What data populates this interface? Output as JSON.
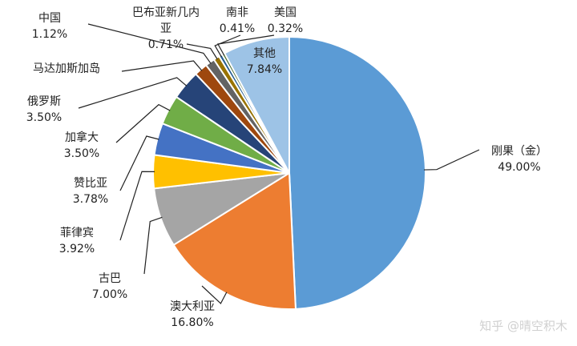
{
  "chart_data": {
    "type": "pie",
    "title": "",
    "slices": [
      {
        "name": "刚果（金）",
        "value": 49.0,
        "pct": "49.00%",
        "color": "#5b9bd5"
      },
      {
        "name": "澳大利亚",
        "value": 16.8,
        "pct": "16.80%",
        "color": "#ed7d31"
      },
      {
        "name": "古巴",
        "value": 7.0,
        "pct": "7.00%",
        "color": "#a5a5a5"
      },
      {
        "name": "菲律宾",
        "value": 3.92,
        "pct": "3.92%",
        "color": "#ffc000"
      },
      {
        "name": "赞比亚",
        "value": 3.78,
        "pct": "3.78%",
        "color": "#4472c4"
      },
      {
        "name": "加拿大",
        "value": 3.5,
        "pct": "3.50%",
        "color": "#70ad47"
      },
      {
        "name": "俄罗斯",
        "value": 3.5,
        "pct": "3.50%",
        "color": "#264478"
      },
      {
        "name": "马达加斯加岛",
        "value": 1.58,
        "pct": "",
        "color": "#9e480e"
      },
      {
        "name": "中国",
        "value": 1.12,
        "pct": "1.12%",
        "color": "#636363"
      },
      {
        "name": "巴布亚新几内亚",
        "value": 0.71,
        "pct": "0.71%",
        "color": "#997300"
      },
      {
        "name": "南非",
        "value": 0.41,
        "pct": "0.41%",
        "color": "#255e91"
      },
      {
        "name": "美国",
        "value": 0.32,
        "pct": "0.32%",
        "color": "#43682b"
      },
      {
        "name": "其他",
        "value": 7.84,
        "pct": "7.84%",
        "color": "#9dc3e6"
      }
    ],
    "legend": "none"
  },
  "watermark": "知乎 @晴空积木"
}
